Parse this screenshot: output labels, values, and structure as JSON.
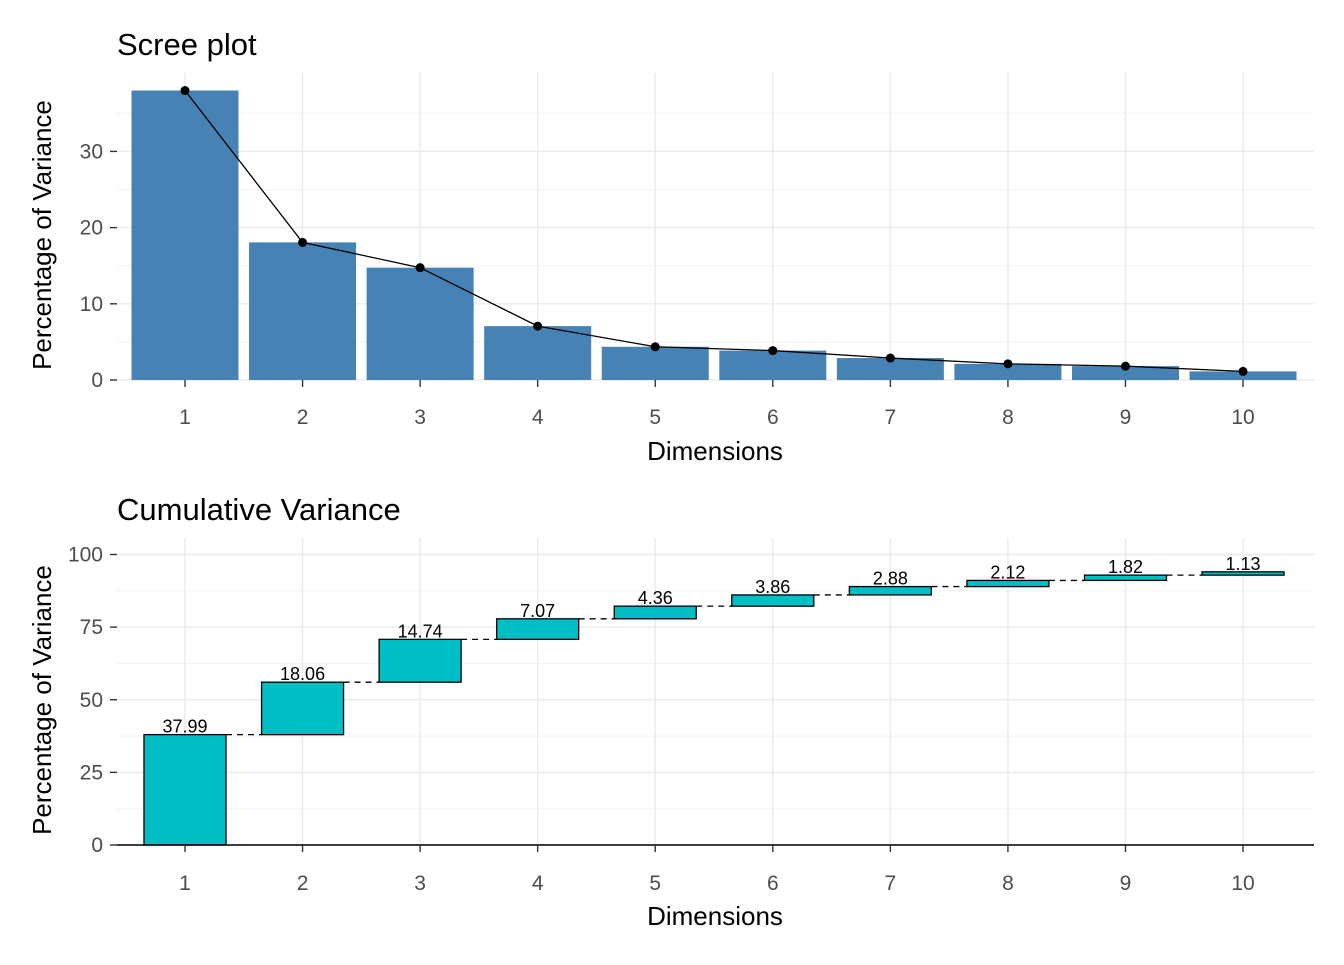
{
  "colors": {
    "scree_bar": "#4682B4",
    "cumulative_bar": "#00BFC4",
    "line": "#000000",
    "grid": "#EBEBEB"
  },
  "chart_data": [
    {
      "type": "bar",
      "title": "Scree plot",
      "xlabel": "Dimensions",
      "ylabel": "Percentage of Variance",
      "categories": [
        "1",
        "2",
        "3",
        "4",
        "5",
        "6",
        "7",
        "8",
        "9",
        "10"
      ],
      "values": [
        37.99,
        18.06,
        14.74,
        7.07,
        4.36,
        3.86,
        2.88,
        2.12,
        1.82,
        1.13
      ],
      "overlay": "line with points",
      "yticks": [
        "0",
        "10",
        "20",
        "30"
      ],
      "ylim": [
        0,
        39.9
      ],
      "grid": true
    },
    {
      "type": "bar",
      "subtype": "waterfall",
      "title": "Cumulative Variance",
      "xlabel": "Dimensions",
      "ylabel": "Percentage of Variance",
      "categories": [
        "1",
        "2",
        "3",
        "4",
        "5",
        "6",
        "7",
        "8",
        "9",
        "10"
      ],
      "values": [
        37.99,
        18.06,
        14.74,
        7.07,
        4.36,
        3.86,
        2.88,
        2.12,
        1.82,
        1.13
      ],
      "data_labels": [
        "37.99",
        "18.06",
        "14.74",
        "7.07",
        "4.36",
        "3.86",
        "2.88",
        "2.12",
        "1.82",
        "1.13"
      ],
      "connectors": "dashed",
      "yticks": [
        "0",
        "25",
        "50",
        "75",
        "100"
      ],
      "ylim": [
        0,
        103
      ],
      "grid": true
    }
  ]
}
